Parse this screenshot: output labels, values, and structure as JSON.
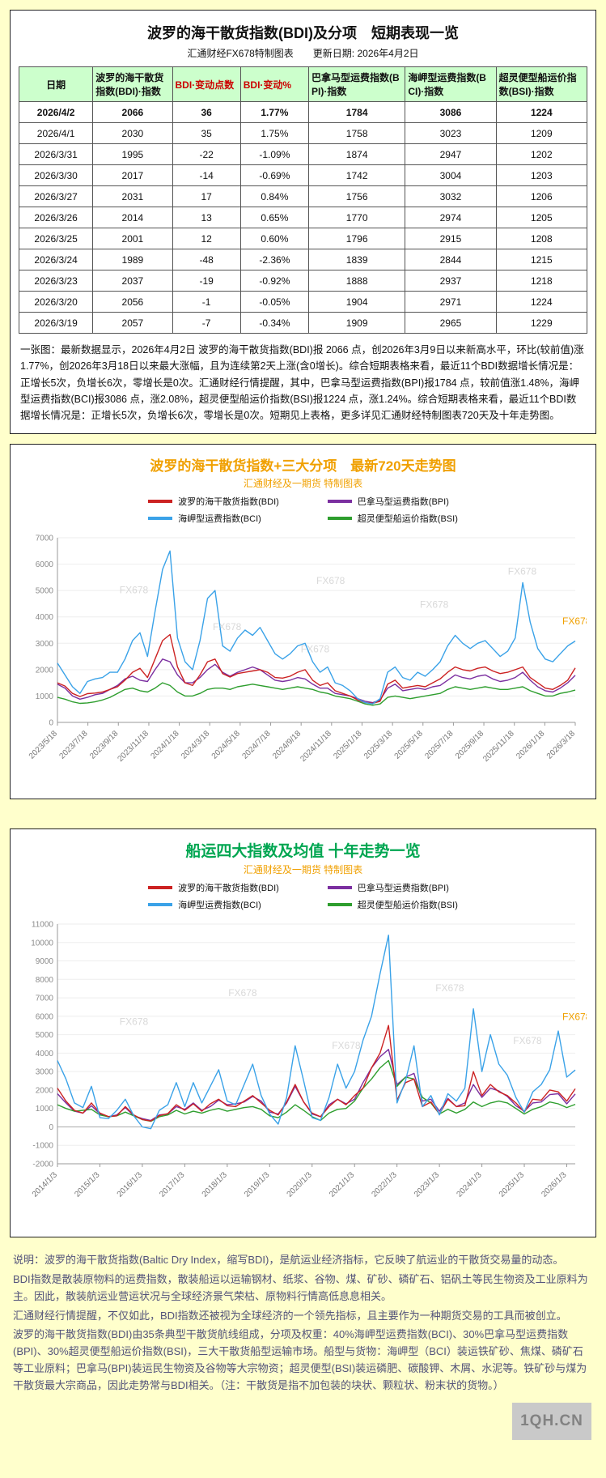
{
  "page": {
    "background": "#ffffcc"
  },
  "colors": {
    "page_bg": "#ffffcc",
    "table_header_bg": "#ccffcc",
    "table_header_red": "#cc0000",
    "chart1_title_orange": "#f0a000",
    "chart2_title_green": "#00a651",
    "subtitle_orange": "#f0a000",
    "bdi_red": "#cc2222",
    "bpi_purple": "#7b2fa0",
    "bci_blue": "#3aa2e8",
    "bsi_green": "#2e9e2e"
  },
  "table_panel": {
    "title": "波罗的海干散货指数(BDI)及分项　短期表现一览",
    "subtitle": "汇通财经FX678特制图表　　更新日期: 2026年4月2日",
    "columns": [
      "日期",
      "波罗的海干散货指数(BDI)·指数",
      "BDI·变动点数",
      "BDI·变动%",
      "巴拿马型运费指数(BPI)·指数",
      "海岬型运费指数(BCI)·指数",
      "超灵便型船运价指数(BSI)·指数"
    ],
    "rows": [
      [
        "2026/4/2",
        "2066",
        "36",
        "1.77%",
        "1784",
        "3086",
        "1224"
      ],
      [
        "2026/4/1",
        "2030",
        "35",
        "1.75%",
        "1758",
        "3023",
        "1209"
      ],
      [
        "2026/3/31",
        "1995",
        "-22",
        "-1.09%",
        "1874",
        "2947",
        "1202"
      ],
      [
        "2026/3/30",
        "2017",
        "-14",
        "-0.69%",
        "1742",
        "3004",
        "1203"
      ],
      [
        "2026/3/27",
        "2031",
        "17",
        "0.84%",
        "1756",
        "3032",
        "1206"
      ],
      [
        "2026/3/26",
        "2014",
        "13",
        "0.65%",
        "1770",
        "2974",
        "1205"
      ],
      [
        "2026/3/25",
        "2001",
        "12",
        "0.60%",
        "1796",
        "2915",
        "1208"
      ],
      [
        "2026/3/24",
        "1989",
        "-48",
        "-2.36%",
        "1839",
        "2844",
        "1215"
      ],
      [
        "2026/3/23",
        "2037",
        "-19",
        "-0.92%",
        "1888",
        "2937",
        "1218"
      ],
      [
        "2026/3/20",
        "2056",
        "-1",
        "-0.05%",
        "1904",
        "2971",
        "1224"
      ],
      [
        "2026/3/19",
        "2057",
        "-7",
        "-0.34%",
        "1909",
        "2965",
        "1229"
      ]
    ],
    "note": "一张图：最新数据显示，2026年4月2日 波罗的海干散货指数(BDI)报 2066 点，创2026年3月9日以来新高水平，环比(较前值)涨1.77%，创2026年3月18日以来最大涨幅，且为连续第2天上涨(含0增长)。综合短期表格来看，最近11个BDI数据增长情况是：正增长5次，负增长6次，零增长是0次。汇通财经行情提醒，其中，巴拿马型运费指数(BPI)报1784 点，较前值涨1.48%，海岬型运费指数(BCI)报3086 点，涨2.08%，超灵便型船运价指数(BSI)报1224 点，涨1.24%。综合短期表格来看，最近11个BDI数据增长情况是：正增长5次，负增长6次，零增长是0次。短期见上表格，更多详见汇通财经特制图表720天及十年走势图。"
  },
  "chart_data": [
    {
      "type": "line",
      "title": "波罗的海干散货指数+三大分项　最新720天走势图",
      "subtitle": "汇通财经及一期货 特制图表",
      "xlabel": "",
      "ylabel": "",
      "ylim": [
        0,
        7000
      ],
      "ytick": 1000,
      "grid": true,
      "legend_position": "top",
      "watermark_text": "FX678",
      "watermarks": [
        [
          0.12,
          0.3
        ],
        [
          0.3,
          0.5
        ],
        [
          0.5,
          0.25
        ],
        [
          0.47,
          0.62
        ],
        [
          0.7,
          0.38
        ],
        [
          0.87,
          0.2
        ],
        [
          0.975,
          0.47,
          "#f0a000"
        ]
      ],
      "x_ticks": {
        "labels": [
          "2023/5/18",
          "2023/7/18",
          "2023/9/18",
          "2023/11/18",
          "2024/1/18",
          "2024/3/18",
          "2024/5/18",
          "2024/7/18",
          "2024/9/18",
          "2024/11/18",
          "2025/1/18",
          "2025/3/18",
          "2025/5/18",
          "2025/7/18",
          "2025/9/18",
          "2025/11/18",
          "2026/1/18",
          "2026/3/18"
        ],
        "fractions": [
          0,
          0.0588,
          0.1176,
          0.1765,
          0.2353,
          0.2941,
          0.3529,
          0.4118,
          0.4706,
          0.5294,
          0.5882,
          0.6471,
          0.7059,
          0.7647,
          0.8235,
          0.8824,
          0.9412,
          1
        ]
      },
      "z_order": [
        1,
        3,
        0,
        2
      ],
      "series": [
        {
          "name": "波罗的海干散货指数(BDI)",
          "color": "#cc2222",
          "values": [
            1500,
            1380,
            1100,
            980,
            1090,
            1110,
            1150,
            1250,
            1350,
            1600,
            1900,
            2050,
            1700,
            2400,
            3100,
            3330,
            2100,
            1500,
            1400,
            1800,
            2300,
            2400,
            1850,
            1720,
            1850,
            1900,
            1950,
            2000,
            1900,
            1700,
            1680,
            1750,
            1900,
            2000,
            1600,
            1400,
            1500,
            1200,
            1100,
            1000,
            850,
            750,
            720,
            800,
            1450,
            1600,
            1300,
            1350,
            1400,
            1350,
            1500,
            1650,
            1900,
            2100,
            2000,
            1950,
            2050,
            2100,
            1950,
            1850,
            1900,
            2000,
            2100,
            1700,
            1500,
            1300,
            1250,
            1400,
            1600,
            2066
          ]
        },
        {
          "name": "巴拿马型运费指数(BPI)",
          "color": "#7b2fa0",
          "values": [
            1450,
            1300,
            1000,
            880,
            950,
            1050,
            1100,
            1250,
            1400,
            1650,
            1750,
            1600,
            1550,
            2000,
            2400,
            2300,
            1800,
            1500,
            1500,
            1700,
            2000,
            2200,
            1900,
            1750,
            1900,
            2000,
            2100,
            2000,
            1800,
            1600,
            1550,
            1600,
            1700,
            1650,
            1450,
            1300,
            1300,
            1100,
            1050,
            1000,
            900,
            800,
            750,
            850,
            1300,
            1450,
            1200,
            1250,
            1300,
            1250,
            1350,
            1400,
            1600,
            1800,
            1700,
            1650,
            1750,
            1800,
            1650,
            1550,
            1600,
            1700,
            1900,
            1600,
            1350,
            1200,
            1150,
            1300,
            1500,
            1784
          ]
        },
        {
          "name": "海岬型运费指数(BCI)",
          "color": "#3aa2e8",
          "values": [
            2250,
            1800,
            1350,
            1100,
            1550,
            1650,
            1700,
            1900,
            1900,
            2400,
            3100,
            3400,
            2500,
            4200,
            5800,
            6500,
            3200,
            2300,
            2000,
            3100,
            4700,
            5000,
            2900,
            2700,
            3200,
            3500,
            3300,
            3600,
            3100,
            2600,
            2400,
            2600,
            2900,
            3000,
            2300,
            1900,
            2100,
            1500,
            1400,
            1200,
            900,
            750,
            700,
            900,
            1900,
            2100,
            1700,
            1600,
            1900,
            1750,
            2000,
            2300,
            2900,
            3300,
            3000,
            2800,
            3000,
            3100,
            2800,
            2500,
            2700,
            3200,
            5300,
            3800,
            2800,
            2400,
            2300,
            2600,
            2900,
            3086
          ]
        },
        {
          "name": "超灵便型船运价指数(BSI)",
          "color": "#2e9e2e",
          "values": [
            950,
            880,
            780,
            720,
            740,
            780,
            850,
            950,
            1100,
            1250,
            1300,
            1200,
            1150,
            1300,
            1500,
            1400,
            1150,
            1000,
            1000,
            1100,
            1250,
            1300,
            1300,
            1250,
            1350,
            1400,
            1450,
            1400,
            1350,
            1300,
            1250,
            1300,
            1350,
            1300,
            1250,
            1150,
            1100,
            1000,
            950,
            900,
            800,
            700,
            650,
            700,
            950,
            1000,
            950,
            900,
            950,
            1000,
            1050,
            1100,
            1250,
            1350,
            1300,
            1250,
            1300,
            1350,
            1300,
            1250,
            1250,
            1300,
            1350,
            1200,
            1100,
            1000,
            1000,
            1100,
            1150,
            1224
          ]
        }
      ]
    },
    {
      "type": "line",
      "title": "船运四大指数及均值 十年走势一览",
      "subtitle": "汇通财经及一期货 特制图表",
      "xlabel": "",
      "ylabel": "",
      "ylim": [
        -2000,
        11000
      ],
      "ytick": 1000,
      "grid": true,
      "legend_position": "top",
      "watermark_text": "FX678",
      "watermarks": [
        [
          0.12,
          0.42
        ],
        [
          0.33,
          0.3
        ],
        [
          0.53,
          0.52
        ],
        [
          0.73,
          0.28
        ],
        [
          0.88,
          0.5
        ],
        [
          0.975,
          0.4,
          "#f0a000"
        ]
      ],
      "x_ticks": {
        "labels": [
          "2014/1/3",
          "2015/1/3",
          "2016/1/3",
          "2017/1/3",
          "2018/1/3",
          "2019/1/3",
          "2020/1/3",
          "2021/1/3",
          "2022/1/3",
          "2023/1/3",
          "2024/1/3",
          "2025/1/3",
          "2026/1/3"
        ],
        "fractions": [
          0,
          0.082,
          0.1639,
          0.2459,
          0.3279,
          0.4098,
          0.4918,
          0.5738,
          0.6557,
          0.7377,
          0.8197,
          0.9016,
          0.9836
        ]
      },
      "z_order": [
        1,
        3,
        0,
        2
      ],
      "series": [
        {
          "name": "波罗的海干散货指数(BDI)",
          "color": "#cc2222",
          "values": [
            2100,
            1400,
            900,
            750,
            1300,
            750,
            560,
            600,
            1100,
            650,
            400,
            320,
            610,
            720,
            1200,
            900,
            1250,
            850,
            1250,
            1500,
            1150,
            1100,
            1400,
            1700,
            1300,
            900,
            650,
            1350,
            2300,
            1350,
            750,
            550,
            1100,
            1500,
            1200,
            1700,
            2100,
            3200,
            4000,
            5500,
            1450,
            2400,
            2600,
            1100,
            1350,
            700,
            1500,
            1100,
            1150,
            3000,
            1700,
            2300,
            1900,
            1700,
            1300,
            800,
            1500,
            1450,
            2000,
            1900,
            1400,
            2066
          ]
        },
        {
          "name": "巴拿马型运费指数(BPI)",
          "color": "#7b2fa0",
          "values": [
            1800,
            1300,
            850,
            750,
            1150,
            700,
            550,
            650,
            1050,
            600,
            450,
            350,
            650,
            700,
            1100,
            950,
            1300,
            900,
            1100,
            1450,
            1200,
            1250,
            1350,
            1650,
            1400,
            800,
            700,
            1300,
            2200,
            1350,
            700,
            550,
            1200,
            1500,
            1250,
            1500,
            2400,
            3200,
            3800,
            4200,
            2300,
            2700,
            2900,
            1400,
            1500,
            850,
            1550,
            1100,
            1300,
            2300,
            1600,
            2100,
            1950,
            1650,
            1150,
            850,
            1300,
            1350,
            1750,
            1800,
            1250,
            1784
          ]
        },
        {
          "name": "海岬型运费指数(BCI)",
          "color": "#3aa2e8",
          "values": [
            3600,
            2600,
            1300,
            1050,
            2200,
            500,
            450,
            900,
            1500,
            600,
            0,
            -100,
            900,
            1200,
            2400,
            1100,
            2400,
            1300,
            2200,
            3100,
            1400,
            1200,
            2300,
            3400,
            1700,
            700,
            150,
            1600,
            4400,
            2500,
            500,
            350,
            1600,
            3400,
            2100,
            3000,
            4700,
            6000,
            8300,
            10400,
            1300,
            2500,
            4400,
            1100,
            1700,
            650,
            1800,
            1400,
            2100,
            6400,
            3000,
            5000,
            3400,
            2800,
            1600,
            800,
            1900,
            2300,
            3100,
            5200,
            2700,
            3086
          ]
        },
        {
          "name": "超灵便型船运价指数(BSI)",
          "color": "#2e9e2e",
          "values": [
            1200,
            1000,
            850,
            900,
            950,
            650,
            550,
            600,
            800,
            600,
            400,
            300,
            550,
            650,
            900,
            700,
            850,
            750,
            900,
            1000,
            850,
            950,
            1050,
            1100,
            950,
            600,
            500,
            800,
            1200,
            900,
            550,
            350,
            750,
            950,
            1000,
            1400,
            2100,
            2600,
            3200,
            3600,
            2200,
            2700,
            2600,
            1600,
            1300,
            700,
            950,
            750,
            950,
            1350,
            1100,
            1300,
            1400,
            1300,
            1000,
            700,
            950,
            1100,
            1350,
            1250,
            1050,
            1224
          ]
        }
      ]
    }
  ],
  "footer": {
    "paragraphs": [
      "说明：波罗的海干散货指数(Baltic Dry Index，缩写BDI)，是航运业经济指标，它反映了航运业的干散货交易量的动态。",
      "BDI指数是散装原物料的运费指数，散装船运以运输钢材、纸浆、谷物、煤、矿砂、磷矿石、铝矾土等民生物资及工业原料为主。因此，散装航运业营运状况与全球经济景气荣枯、原物料行情高低息息相关。",
      "汇通财经行情提醒，不仅如此，BDI指数还被视为全球经济的一个领先指标，且主要作为一种期货交易的工具而被创立。",
      "波罗的海干散货指数(BDI)由35条典型干散货航线组成，分项及权重：40%海岬型运费指数(BCI)、30%巴拿马型运费指数(BPI)、30%超灵便型船运价指数(BSI)，三大干散货船型运输市场。船型与货物：海岬型（BCI）装运铁矿砂、焦煤、磷矿石等工业原料；巴拿马(BPI)装运民生物资及谷物等大宗物资；超灵便型(BSI)装运磷肥、碳酸钾、木屑、水泥等。铁矿砂与煤为干散货最大宗商品，因此走势常与BDI相关。（注：干散货是指不加包装的块状、颗粒状、粉末状的货物。）"
    ]
  },
  "watermark": {
    "label": "1QH.CN"
  }
}
